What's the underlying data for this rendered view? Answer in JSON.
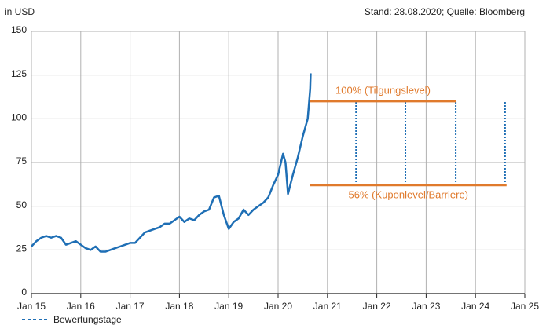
{
  "chart_data": {
    "type": "line",
    "y_label": "in USD",
    "source": "Stand: 28.08.2020; Quelle: Bloomberg",
    "xlim": [
      2015,
      2025
    ],
    "xticks": [
      {
        "value": 2015,
        "label": "Jan 15"
      },
      {
        "value": 2016,
        "label": "Jan 16"
      },
      {
        "value": 2017,
        "label": "Jan 17"
      },
      {
        "value": 2018,
        "label": "Jan 18"
      },
      {
        "value": 2019,
        "label": "Jan 19"
      },
      {
        "value": 2020,
        "label": "Jan 20"
      },
      {
        "value": 2021,
        "label": "Jan 21"
      },
      {
        "value": 2022,
        "label": "Jan 22"
      },
      {
        "value": 2023,
        "label": "Jan 23"
      },
      {
        "value": 2024,
        "label": "Jan 24"
      },
      {
        "value": 2025,
        "label": "Jan 25"
      }
    ],
    "ylim": [
      0,
      150
    ],
    "yticks": [
      0,
      25,
      50,
      75,
      100,
      125,
      150
    ],
    "grid": true,
    "series": [
      {
        "color": "#1f6fb5",
        "x": [
          2015.0,
          2015.1,
          2015.2,
          2015.3,
          2015.4,
          2015.5,
          2015.6,
          2015.7,
          2015.8,
          2015.9,
          2016.0,
          2016.1,
          2016.2,
          2016.3,
          2016.4,
          2016.5,
          2016.6,
          2016.7,
          2016.8,
          2016.9,
          2017.0,
          2017.1,
          2017.2,
          2017.3,
          2017.4,
          2017.5,
          2017.6,
          2017.7,
          2017.8,
          2017.9,
          2018.0,
          2018.1,
          2018.2,
          2018.3,
          2018.4,
          2018.5,
          2018.6,
          2018.7,
          2018.8,
          2018.9,
          2019.0,
          2019.1,
          2019.2,
          2019.3,
          2019.4,
          2019.5,
          2019.6,
          2019.7,
          2019.8,
          2019.9,
          2020.0,
          2020.1,
          2020.15,
          2020.2,
          2020.3,
          2020.4,
          2020.5,
          2020.6,
          2020.65,
          2020.66
        ],
        "values": [
          27,
          30,
          32,
          33,
          32,
          33,
          32,
          28,
          29,
          30,
          28,
          26,
          25,
          27,
          24,
          24,
          25,
          26,
          27,
          28,
          29,
          29,
          32,
          35,
          36,
          37,
          38,
          40,
          40,
          42,
          44,
          41,
          43,
          42,
          45,
          47,
          48,
          55,
          56,
          45,
          37,
          41,
          43,
          48,
          45,
          48,
          50,
          52,
          55,
          62,
          68,
          80,
          75,
          57,
          68,
          78,
          90,
          100,
          117,
          126
        ]
      }
    ],
    "levels": [
      {
        "label": "100% (Tilgungslevel)",
        "value": 110,
        "x": [
          2020.65,
          2023.6
        ],
        "color": "#e07a2c"
      },
      {
        "label": "56% (Kuponlevel/Barriere)",
        "value": 62,
        "x": [
          2020.65,
          2024.63
        ],
        "color": "#e07a2c"
      }
    ],
    "observations": {
      "name": "Bewertungstage",
      "color": "#1f6fb5",
      "x": [
        2021.58,
        2022.58,
        2023.6,
        2024.6
      ]
    }
  }
}
